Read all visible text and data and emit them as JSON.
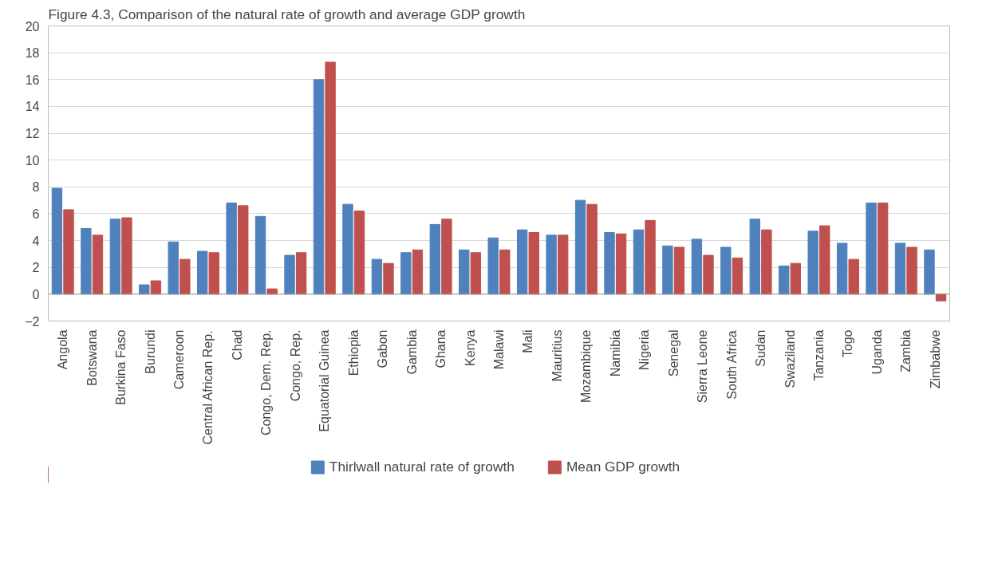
{
  "chart_data": {
    "type": "bar",
    "title": "Figure 4.3, Comparison of the natural rate of growth and average GDP growth",
    "categories": [
      "Angola",
      "Botswana",
      "Burkina Faso",
      "Burundi",
      "Cameroon",
      "Central African Rep.",
      "Chad",
      "Congo, Dem. Rep.",
      "Congo, Rep.",
      "Equatorial Guinea",
      "Ethiopia",
      "Gabon",
      "Gambia",
      "Ghana",
      "Kenya",
      "Malawi",
      "Mali",
      "Mauritius",
      "Mozambique",
      "Namibia",
      "Nigeria",
      "Senegal",
      "Sierra Leone",
      "South Africa",
      "Sudan",
      "Swaziland",
      "Tanzania",
      "Togo",
      "Uganda",
      "Zambia",
      "Zimbabwe"
    ],
    "series": [
      {
        "name": "Thirlwall natural rate of growth",
        "color": "#4f81bd",
        "values": [
          7.9,
          4.9,
          5.6,
          0.7,
          3.9,
          3.2,
          6.8,
          5.8,
          2.9,
          16.0,
          6.7,
          2.6,
          3.1,
          5.2,
          3.3,
          4.2,
          4.8,
          4.4,
          7.0,
          4.6,
          4.8,
          3.6,
          4.1,
          3.5,
          5.6,
          2.1,
          4.7,
          3.8,
          6.8,
          3.8,
          3.3
        ]
      },
      {
        "name": "Mean GDP growth",
        "color": "#c0504d",
        "values": [
          6.3,
          4.4,
          5.7,
          1.0,
          2.6,
          3.1,
          6.6,
          0.4,
          3.1,
          17.3,
          6.2,
          2.3,
          3.3,
          5.6,
          3.1,
          3.3,
          4.6,
          4.4,
          6.7,
          4.5,
          5.5,
          3.5,
          2.9,
          2.7,
          4.8,
          2.3,
          5.1,
          2.6,
          6.8,
          3.5,
          -0.5
        ]
      }
    ],
    "ylim": [
      -2,
      20
    ],
    "yticks": [
      -2,
      0,
      2,
      4,
      6,
      8,
      10,
      12,
      14,
      16,
      18,
      20
    ],
    "grid": "y",
    "legend": "bottom"
  }
}
